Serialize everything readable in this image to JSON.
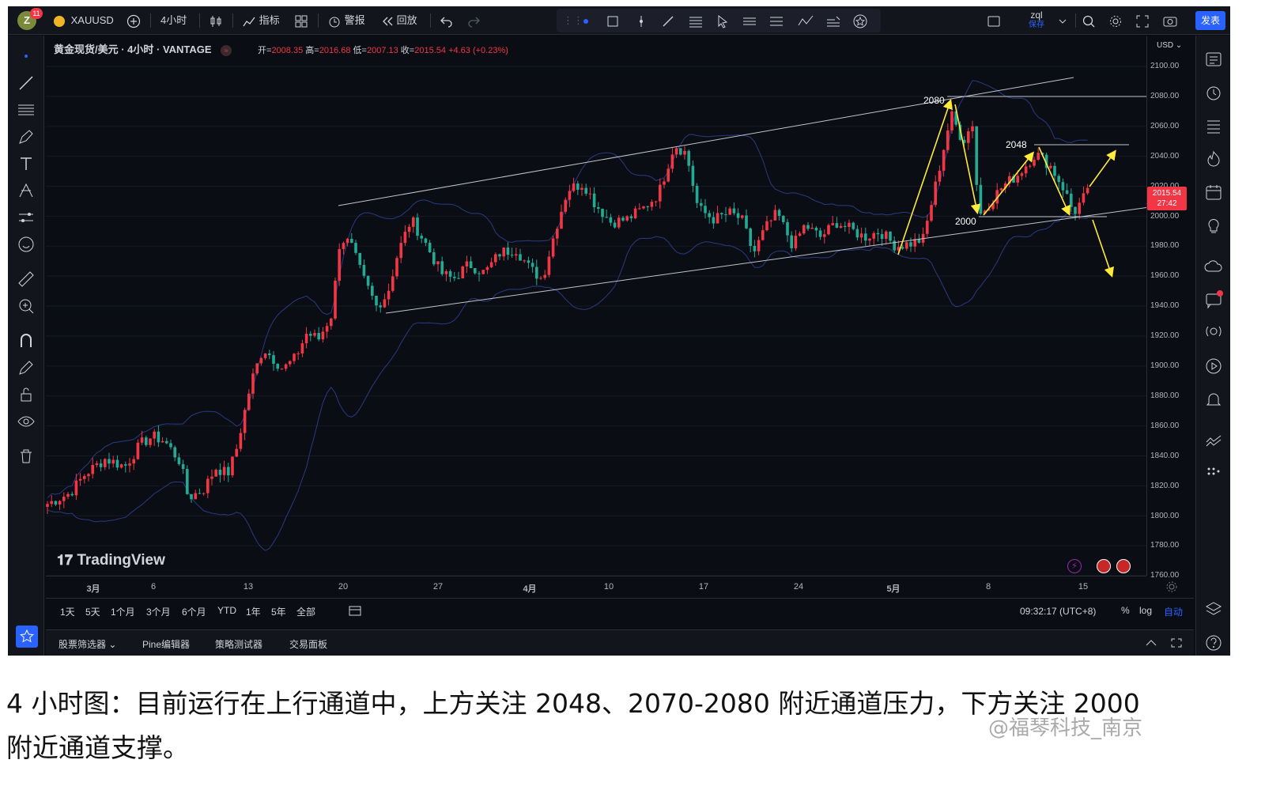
{
  "toolbar": {
    "avatar_letter": "Z",
    "notifications": "11",
    "symbol": "XAUUSD",
    "interval": "4小时",
    "indicators": "指标",
    "alert": "警报",
    "replay": "回放",
    "layout_name": "zql",
    "layout_status": "保存",
    "publish": "发表"
  },
  "legend": {
    "title": "黄金现货/美元 · 4小时 · VANTAGE",
    "open_key": "开=",
    "open": "2008.35",
    "high_key": "高=",
    "high": "2016.68",
    "low_key": "低=",
    "low": "2007.13",
    "close_key": "收=",
    "close": "2015.54",
    "change": "+4.63 (+0.23%)"
  },
  "price_axis": {
    "currency": "USD",
    "ticks": [
      "2100.00",
      "2080.00",
      "2060.00",
      "2040.00",
      "2020.00",
      "2000.00",
      "1980.00",
      "1960.00",
      "1940.00",
      "1920.00",
      "1900.00",
      "1880.00",
      "1860.00",
      "1840.00",
      "1820.00",
      "1800.00",
      "1780.00",
      "1760.00"
    ],
    "last_price": "2015.54",
    "countdown": "27:42"
  },
  "time_axis": {
    "labels": [
      "3月",
      "6",
      "13",
      "20",
      "27",
      "4月",
      "10",
      "17",
      "24",
      "5月",
      "8",
      "15"
    ]
  },
  "ranges": [
    "1天",
    "5天",
    "1个月",
    "3个月",
    "6个月",
    "YTD",
    "1年",
    "5年",
    "全部"
  ],
  "clock": "09:32:17 (UTC+8)",
  "scale": {
    "percent": "%",
    "log": "log",
    "auto": "自动"
  },
  "bottom_tabs": [
    "股票筛选器",
    "Pine编辑器",
    "策略测试器",
    "交易面板"
  ],
  "brand": "TradingView",
  "annotations": {
    "top_level": "2080",
    "mid_level": "2048",
    "support_level": "2000"
  },
  "caption_line1": "4 小时图：目前运行在上行通道中，上方关注 2048、2070-2080 附近通道压力，下方关注 2000",
  "caption_line2": "附近通道支撑。",
  "watermark": "@福琴科技_南京",
  "colors": {
    "up": "#f23645",
    "down": "#22ab94",
    "arrows": "#ffeb3b",
    "accent": "#2962ff"
  }
}
